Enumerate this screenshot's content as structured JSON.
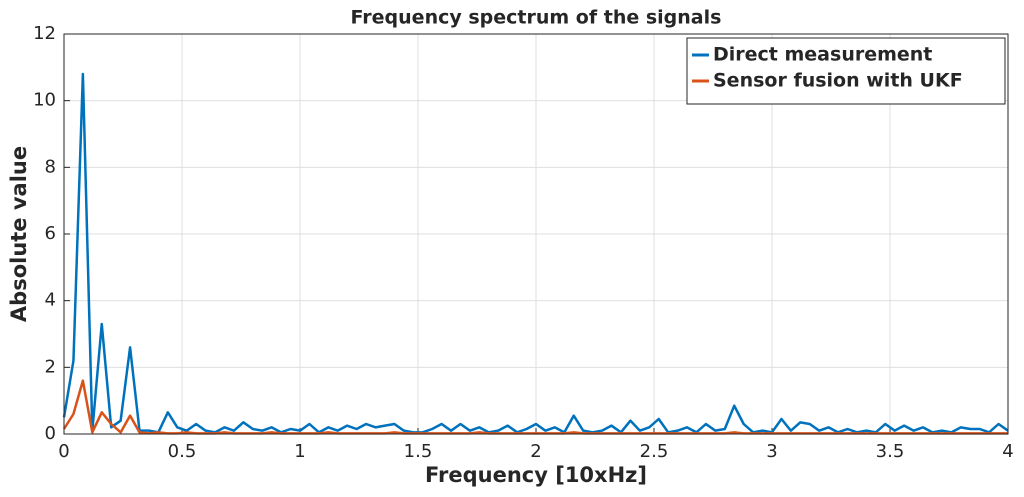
{
  "chart_data": {
    "type": "line",
    "title": "Frequency spectrum of the signals",
    "x_label": "Frequency [10xHz]",
    "y_label": "Absolute value",
    "x": [
      0,
      0.04,
      0.08,
      0.12,
      0.16,
      0.2,
      0.24,
      0.28,
      0.32,
      0.36,
      0.4,
      0.44,
      0.48,
      0.52,
      0.56,
      0.6,
      0.64,
      0.68,
      0.72,
      0.76,
      0.8,
      0.84,
      0.88,
      0.92,
      0.96,
      1,
      1.04,
      1.08,
      1.12,
      1.16,
      1.2,
      1.24,
      1.28,
      1.32,
      1.36,
      1.4,
      1.44,
      1.48,
      1.52,
      1.56,
      1.6,
      1.64,
      1.68,
      1.72,
      1.76,
      1.8,
      1.84,
      1.88,
      1.92,
      1.96,
      2,
      2.04,
      2.08,
      2.12,
      2.16,
      2.2,
      2.24,
      2.28,
      2.32,
      2.36,
      2.4,
      2.44,
      2.48,
      2.52,
      2.56,
      2.6,
      2.64,
      2.68,
      2.72,
      2.76,
      2.8,
      2.84,
      2.88,
      2.92,
      2.96,
      3,
      3.04,
      3.08,
      3.12,
      3.16,
      3.2,
      3.24,
      3.28,
      3.32,
      3.36,
      3.4,
      3.44,
      3.48,
      3.52,
      3.56,
      3.6,
      3.64,
      3.68,
      3.72,
      3.76,
      3.8,
      3.84,
      3.88,
      3.92,
      3.96,
      4
    ],
    "series": [
      {
        "name": "Direct measurement",
        "color": "#0072bd",
        "values": [
          0.5,
          2.2,
          10.8,
          0.1,
          3.3,
          0.2,
          0.4,
          2.6,
          0.1,
          0.1,
          0.05,
          0.65,
          0.2,
          0.1,
          0.3,
          0.1,
          0.05,
          0.2,
          0.1,
          0.35,
          0.15,
          0.1,
          0.2,
          0.05,
          0.15,
          0.1,
          0.3,
          0.05,
          0.2,
          0.1,
          0.25,
          0.15,
          0.3,
          0.2,
          0.25,
          0.3,
          0.1,
          0.05,
          0.05,
          0.15,
          0.3,
          0.1,
          0.3,
          0.1,
          0.2,
          0.05,
          0.1,
          0.25,
          0.05,
          0.15,
          0.3,
          0.1,
          0.2,
          0.05,
          0.55,
          0.1,
          0.05,
          0.1,
          0.25,
          0.05,
          0.4,
          0.1,
          0.2,
          0.45,
          0.05,
          0.1,
          0.2,
          0.05,
          0.3,
          0.1,
          0.15,
          0.85,
          0.3,
          0.05,
          0.1,
          0.05,
          0.45,
          0.1,
          0.35,
          0.3,
          0.1,
          0.2,
          0.05,
          0.15,
          0.05,
          0.1,
          0.05,
          0.3,
          0.1,
          0.25,
          0.1,
          0.2,
          0.05,
          0.1,
          0.05,
          0.2,
          0.15,
          0.15,
          0.05,
          0.3,
          0.1
        ]
      },
      {
        "name": "Sensor fusion with UKF",
        "color": "#d95319",
        "values": [
          0.15,
          0.6,
          1.6,
          0.05,
          0.65,
          0.3,
          0.05,
          0.55,
          0.05,
          0.02,
          0.05,
          0.02,
          0.02,
          0.05,
          0.02,
          0.02,
          0.02,
          0.05,
          0.02,
          0.02,
          0.02,
          0.02,
          0.05,
          0.02,
          0.02,
          0.02,
          0.02,
          0.02,
          0.05,
          0.02,
          0.02,
          0.02,
          0.02,
          0.02,
          0.02,
          0.05,
          0.02,
          0.02,
          0.02,
          0.02,
          0.02,
          0.02,
          0.02,
          0.02,
          0.05,
          0.02,
          0.02,
          0.02,
          0.02,
          0.02,
          0.02,
          0.02,
          0.02,
          0.02,
          0.05,
          0.02,
          0.02,
          0.02,
          0.02,
          0.02,
          0.02,
          0.02,
          0.02,
          0.02,
          0.02,
          0.02,
          0.02,
          0.02,
          0.02,
          0.02,
          0.02,
          0.05,
          0.02,
          0.02,
          0.02,
          0.02,
          0.02,
          0.02,
          0.02,
          0.02,
          0.02,
          0.02,
          0.02,
          0.02,
          0.02,
          0.02,
          0.02,
          0.02,
          0.02,
          0.02,
          0.02,
          0.02,
          0.02,
          0.02,
          0.02,
          0.02,
          0.02,
          0.02,
          0.02,
          0.02,
          0.02
        ]
      }
    ],
    "xlim": [
      0,
      4
    ],
    "xticks": [
      0,
      0.5,
      1,
      1.5,
      2,
      2.5,
      3,
      3.5,
      4
    ],
    "ylim": [
      0,
      12
    ],
    "yticks": [
      0,
      2,
      4,
      6,
      8,
      10,
      12
    ],
    "grid": true,
    "legend": "top-right"
  }
}
